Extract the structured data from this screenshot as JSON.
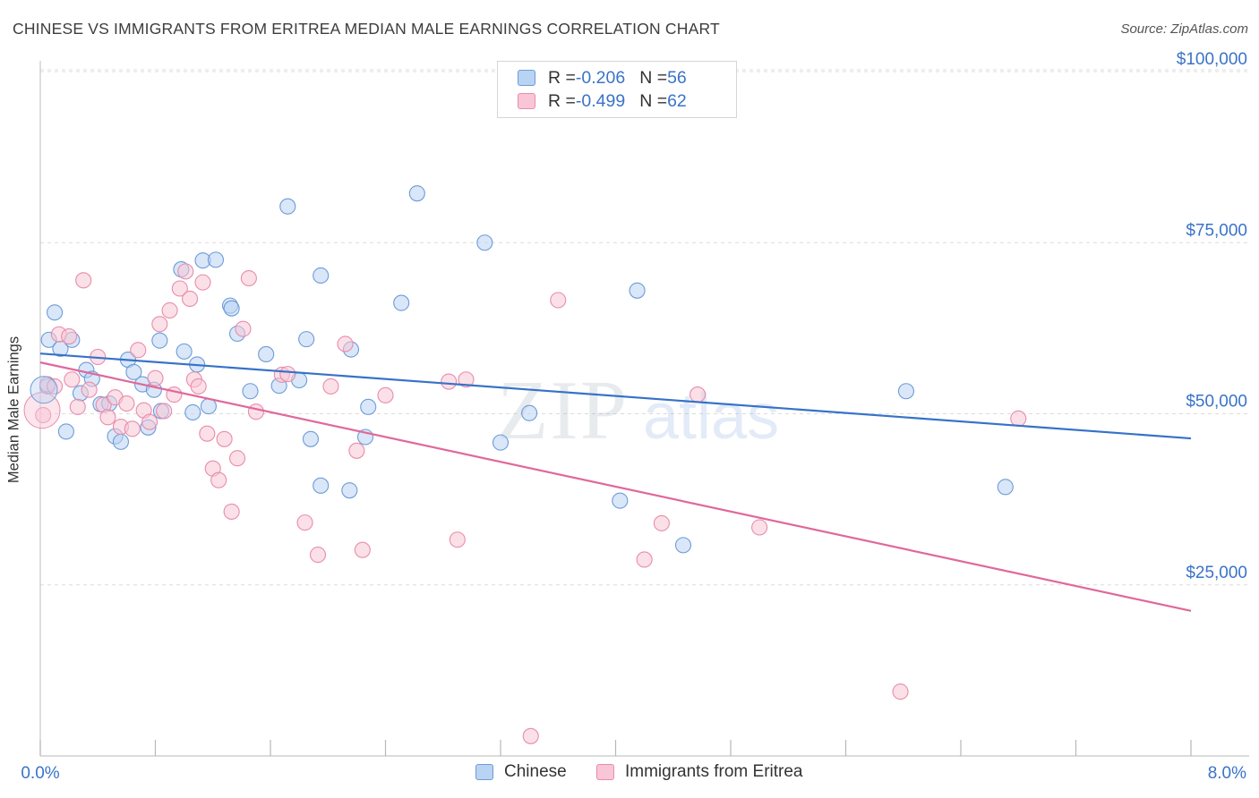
{
  "header": {
    "title": "CHINESE VS IMMIGRANTS FROM ERITREA MEDIAN MALE EARNINGS CORRELATION CHART",
    "source": "Source: ZipAtlas.com"
  },
  "watermark": {
    "zip": "ZIP",
    "atlas": "atlas"
  },
  "legend_top": {
    "rows": [
      {
        "r_label": "R = ",
        "r_value": "-0.206",
        "n_label": "N = ",
        "n_value": "56"
      },
      {
        "r_label": "R = ",
        "r_value": "-0.499",
        "n_label": "N = ",
        "n_value": "62"
      }
    ]
  },
  "colors": {
    "chinese_fill": "#b9d3f3",
    "chinese_stroke": "#6d9bd8",
    "chinese_line": "#3672c8",
    "eritrea_fill": "#f8c6d6",
    "eritrea_stroke": "#e88cab",
    "eritrea_line": "#e0689a",
    "tick_label": "#3a73c8",
    "grid": "#dcdcdc"
  },
  "chart_data": {
    "type": "scatter",
    "ylabel": "Median Male Earnings",
    "xlim": [
      0,
      8
    ],
    "ylim": [
      0,
      105000
    ],
    "x_tick_labels": {
      "min": "0.0%",
      "max": "8.0%"
    },
    "y_ticks": [
      {
        "value": 25000,
        "label": "$25,000"
      },
      {
        "value": 50000,
        "label": "$50,000"
      },
      {
        "value": 75000,
        "label": "$75,000"
      },
      {
        "value": 100000,
        "label": "$100,000"
      }
    ],
    "grid": true,
    "legend_position": "bottom",
    "series": [
      {
        "name": "Chinese",
        "color": "#6d9bd8",
        "trend": {
          "x": [
            0,
            8
          ],
          "y": [
            58800,
            46400
          ]
        },
        "points": [
          [
            0.05,
            54000
          ],
          [
            0.06,
            60800
          ],
          [
            0.1,
            64800
          ],
          [
            0.14,
            59500
          ],
          [
            0.18,
            47400
          ],
          [
            0.22,
            60800
          ],
          [
            0.28,
            53000
          ],
          [
            0.32,
            56400
          ],
          [
            0.36,
            55100
          ],
          [
            0.42,
            51400
          ],
          [
            0.48,
            51500
          ],
          [
            0.52,
            46700
          ],
          [
            0.56,
            45900
          ],
          [
            0.61,
            57900
          ],
          [
            0.65,
            56100
          ],
          [
            0.71,
            54300
          ],
          [
            0.75,
            48000
          ],
          [
            0.79,
            53500
          ],
          [
            0.83,
            60700
          ],
          [
            0.84,
            50400
          ],
          [
            0.98,
            71100
          ],
          [
            1.0,
            59100
          ],
          [
            1.06,
            50200
          ],
          [
            1.09,
            57200
          ],
          [
            1.13,
            72400
          ],
          [
            1.17,
            51100
          ],
          [
            1.22,
            72500
          ],
          [
            1.32,
            65800
          ],
          [
            1.33,
            65400
          ],
          [
            1.37,
            61700
          ],
          [
            1.46,
            53300
          ],
          [
            1.57,
            58700
          ],
          [
            1.66,
            54100
          ],
          [
            1.72,
            80300
          ],
          [
            1.8,
            54900
          ],
          [
            1.85,
            60900
          ],
          [
            1.88,
            46300
          ],
          [
            1.95,
            39500
          ],
          [
            1.95,
            70200
          ],
          [
            2.15,
            38800
          ],
          [
            2.16,
            59400
          ],
          [
            2.26,
            46600
          ],
          [
            2.28,
            51000
          ],
          [
            2.51,
            66200
          ],
          [
            2.62,
            82200
          ],
          [
            3.09,
            75000
          ],
          [
            3.2,
            45800
          ],
          [
            3.4,
            50100
          ],
          [
            4.03,
            37300
          ],
          [
            4.15,
            68000
          ],
          [
            4.47,
            30800
          ],
          [
            6.02,
            53300
          ],
          [
            6.71,
            39300
          ]
        ]
      },
      {
        "name": "Immigrants from Eritrea",
        "color": "#e88cab",
        "trend": {
          "x": [
            0,
            8
          ],
          "y": [
            57500,
            21200
          ]
        },
        "points": [
          [
            0.02,
            49800
          ],
          [
            0.05,
            54300
          ],
          [
            0.1,
            54000
          ],
          [
            0.13,
            61600
          ],
          [
            0.2,
            61300
          ],
          [
            0.22,
            55000
          ],
          [
            0.26,
            51000
          ],
          [
            0.3,
            69500
          ],
          [
            0.34,
            53500
          ],
          [
            0.4,
            58300
          ],
          [
            0.44,
            51300
          ],
          [
            0.47,
            49500
          ],
          [
            0.52,
            52400
          ],
          [
            0.56,
            48100
          ],
          [
            0.6,
            51500
          ],
          [
            0.64,
            47800
          ],
          [
            0.68,
            59300
          ],
          [
            0.72,
            50500
          ],
          [
            0.76,
            48800
          ],
          [
            0.8,
            55200
          ],
          [
            0.83,
            63100
          ],
          [
            0.86,
            50400
          ],
          [
            0.9,
            65100
          ],
          [
            0.93,
            52800
          ],
          [
            0.97,
            68300
          ],
          [
            1.01,
            70800
          ],
          [
            1.04,
            66800
          ],
          [
            1.07,
            55000
          ],
          [
            1.1,
            54000
          ],
          [
            1.13,
            69200
          ],
          [
            1.16,
            47100
          ],
          [
            1.2,
            42000
          ],
          [
            1.24,
            40300
          ],
          [
            1.28,
            46300
          ],
          [
            1.33,
            35700
          ],
          [
            1.37,
            43500
          ],
          [
            1.41,
            62400
          ],
          [
            1.45,
            69800
          ],
          [
            1.5,
            50300
          ],
          [
            1.68,
            55700
          ],
          [
            1.72,
            55800
          ],
          [
            1.84,
            34100
          ],
          [
            1.93,
            29400
          ],
          [
            2.02,
            54000
          ],
          [
            2.12,
            60200
          ],
          [
            2.2,
            44600
          ],
          [
            2.24,
            30100
          ],
          [
            2.4,
            52700
          ],
          [
            2.84,
            54700
          ],
          [
            2.9,
            31600
          ],
          [
            2.96,
            55000
          ],
          [
            3.41,
            2900
          ],
          [
            3.6,
            66600
          ],
          [
            4.2,
            28700
          ],
          [
            4.32,
            34000
          ],
          [
            4.57,
            52800
          ],
          [
            5.0,
            33400
          ],
          [
            5.98,
            9400
          ],
          [
            6.8,
            49300
          ]
        ]
      }
    ]
  }
}
